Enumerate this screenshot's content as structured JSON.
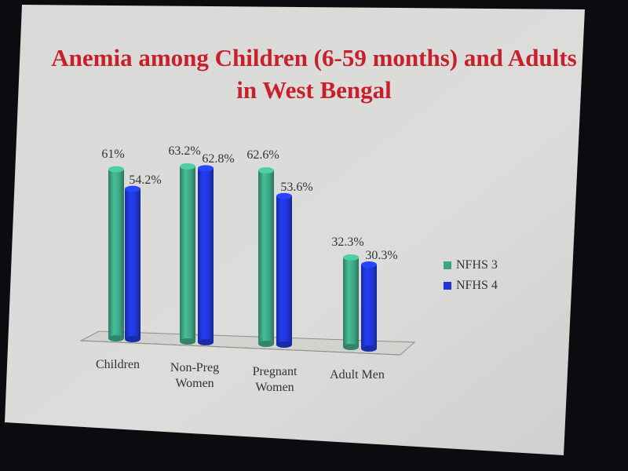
{
  "chart_data": {
    "type": "bar",
    "title_line1": "Anemia among Children (6-59 months) and Adults",
    "title_line2": "in West Bengal",
    "categories": [
      [
        "Children"
      ],
      [
        "Non-Preg",
        "Women"
      ],
      [
        "Pregnant",
        "Women"
      ],
      [
        "Adult Men"
      ]
    ],
    "series": [
      {
        "name": "NFHS 3",
        "color": "#3ea584",
        "values": [
          61,
          63.2,
          62.6,
          32.3
        ],
        "labels": [
          "61%",
          "63.2%",
          "62.6%",
          "32.3%"
        ]
      },
      {
        "name": "NFHS 4",
        "color": "#1f36d6",
        "values": [
          54.2,
          62.8,
          53.6,
          30.3
        ],
        "labels": [
          "54.2%",
          "62.8%",
          "53.6%",
          "30.3%"
        ]
      }
    ],
    "ylim": [
      0,
      70
    ],
    "legend": "right",
    "grid": false
  }
}
